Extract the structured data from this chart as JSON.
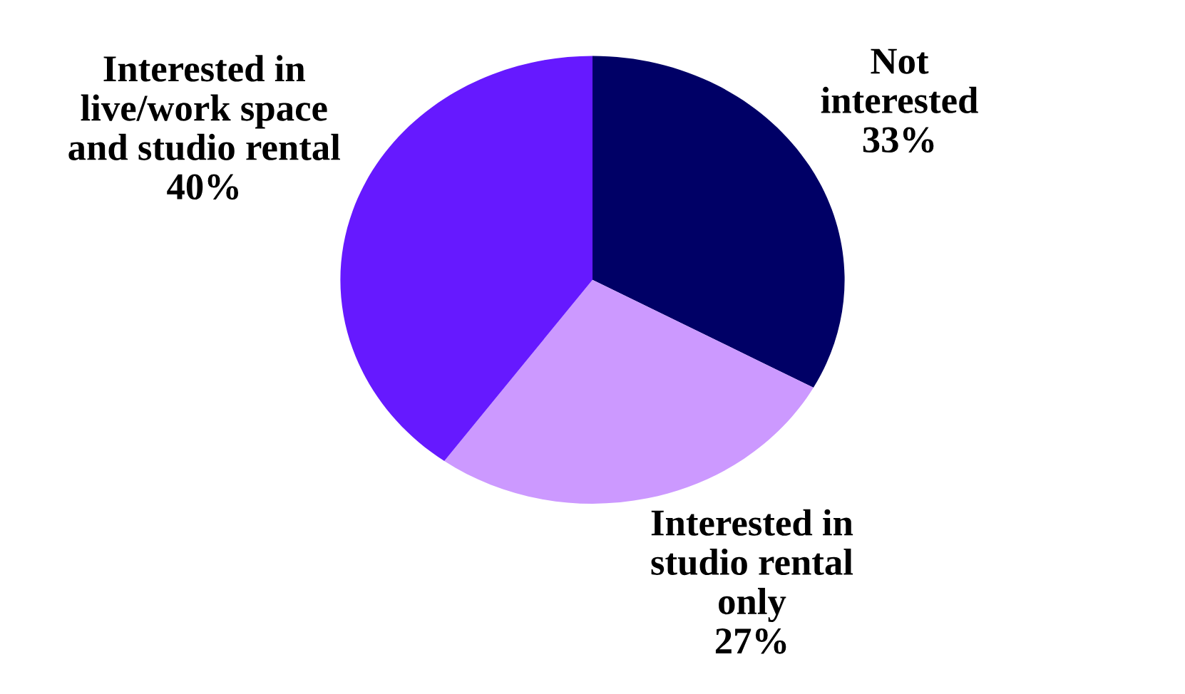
{
  "chart_data": {
    "type": "pie",
    "categories": [
      "Not\ninterested",
      "Interested in\nstudio rental\nonly",
      "Interested in\nlive/work space\nand studio rental"
    ],
    "values": [
      33,
      27,
      40
    ],
    "value_labels": [
      "33%",
      "27%",
      "40%"
    ],
    "colors": [
      "#000066",
      "#cc99ff",
      "#6619ff"
    ]
  }
}
